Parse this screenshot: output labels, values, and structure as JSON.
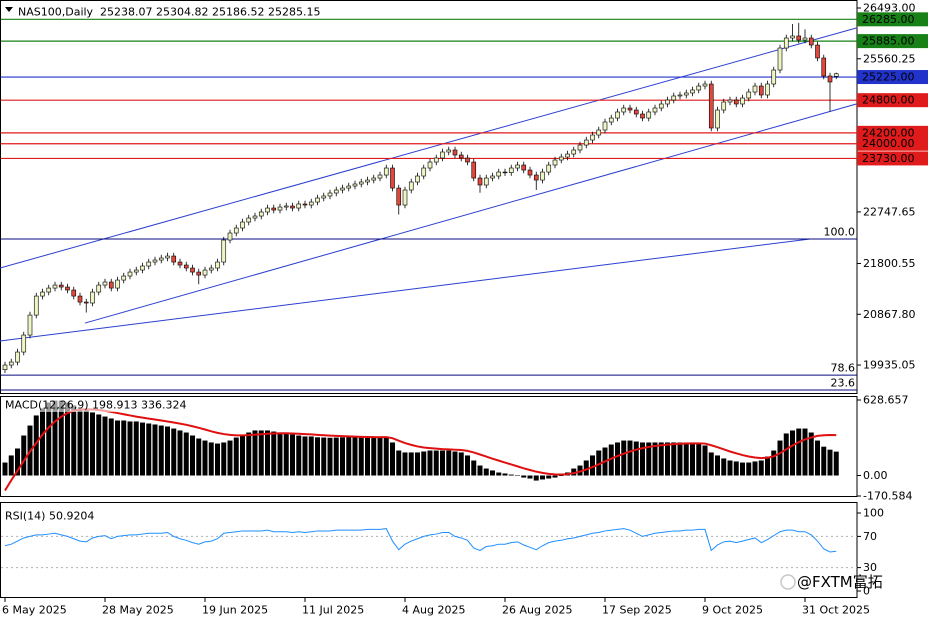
{
  "chart_data": [
    {
      "type": "candlestick",
      "title": "NAS100,Daily  25238.07 25304.82 25186.52 25285.15",
      "categories": [
        "6 May 2025",
        null,
        null,
        null,
        null,
        null,
        null,
        null,
        null,
        null,
        null,
        null,
        null,
        null,
        null,
        null,
        "28 May 2025",
        null,
        null,
        null,
        null,
        null,
        null,
        null,
        null,
        null,
        null,
        null,
        null,
        null,
        null,
        null,
        "19 Jun 2025",
        null,
        null,
        null,
        null,
        null,
        null,
        null,
        null,
        null,
        null,
        null,
        null,
        null,
        null,
        null,
        "11 Jul 2025",
        null,
        null,
        null,
        null,
        null,
        null,
        null,
        null,
        null,
        null,
        null,
        null,
        null,
        null,
        null,
        "4 Aug 2025",
        null,
        null,
        null,
        null,
        null,
        null,
        null,
        null,
        null,
        null,
        null,
        null,
        null,
        null,
        null,
        "26 Aug 2025",
        null,
        null,
        null,
        null,
        null,
        null,
        null,
        null,
        null,
        null,
        null,
        null,
        null,
        null,
        null,
        "17 Sep 2025",
        null,
        null,
        null,
        null,
        null,
        null,
        null,
        null,
        null,
        null,
        null,
        null,
        null,
        null,
        null,
        "9 Oct 2025",
        null,
        null,
        null,
        null,
        null,
        null,
        null,
        null,
        null,
        null,
        null,
        null,
        null,
        null,
        null,
        "31 Oct 2025",
        null,
        null,
        null,
        null,
        null
      ],
      "open": [
        19850,
        19935,
        19990,
        20174,
        20486,
        20853,
        21202,
        21276,
        21349,
        21404,
        21368,
        21313,
        21202,
        21092,
        21074,
        21276,
        21404,
        21460,
        21349,
        21496,
        21570,
        21643,
        21680,
        21754,
        21827,
        21864,
        21901,
        21937,
        21827,
        21772,
        21717,
        21643,
        21588,
        21680,
        21717,
        21827,
        22231,
        22360,
        22452,
        22562,
        22635,
        22672,
        22746,
        22819,
        22782,
        22837,
        22856,
        22819,
        22893,
        22874,
        22929,
        23003,
        23040,
        23095,
        23150,
        23186,
        23223,
        23260,
        23297,
        23333,
        23370,
        23425,
        23554,
        23186,
        22874,
        23150,
        23297,
        23407,
        23554,
        23664,
        23738,
        23848,
        23885,
        23793,
        23738,
        23664,
        23370,
        23242,
        23370,
        23407,
        23480,
        23470,
        23554,
        23609,
        23517,
        23425,
        23333,
        23480,
        23609,
        23701,
        23756,
        23811,
        23885,
        23976,
        24068,
        24160,
        24252,
        24399,
        24472,
        24583,
        24656,
        24619,
        24546,
        24472,
        24583,
        24656,
        24730,
        24803,
        24877,
        24895,
        24932,
        24987,
        25060,
        25097,
        24289,
        24619,
        24766,
        24803,
        24730,
        24840,
        24950,
        25060,
        24895,
        25097,
        25354,
        25758,
        25942,
        25979,
        25905,
        25942,
        25813,
        25575,
        25244,
        25238.07
      ],
      "high": [
        19995,
        20050,
        20234,
        20546,
        20913,
        21262,
        21336,
        21409,
        21464,
        21464,
        21428,
        21373,
        21262,
        21152,
        21336,
        21464,
        21520,
        21520,
        21556,
        21630,
        21703,
        21740,
        21814,
        21887,
        21924,
        21961,
        21997,
        21997,
        21887,
        21832,
        21777,
        21703,
        21740,
        21777,
        21887,
        22291,
        22420,
        22512,
        22622,
        22695,
        22732,
        22806,
        22879,
        22879,
        22897,
        22916,
        22916,
        22953,
        22953,
        22989,
        23063,
        23100,
        23155,
        23210,
        23246,
        23283,
        23320,
        23357,
        23393,
        23430,
        23485,
        23614,
        23614,
        23246,
        23210,
        23357,
        23467,
        23614,
        23724,
        23798,
        23908,
        23945,
        23945,
        23853,
        23798,
        23724,
        23430,
        23430,
        23467,
        23540,
        23540,
        23614,
        23669,
        23669,
        23577,
        23485,
        23540,
        23669,
        23761,
        23816,
        23871,
        23945,
        24036,
        24128,
        24220,
        24312,
        24459,
        24532,
        24643,
        24716,
        24716,
        24679,
        24606,
        24643,
        24716,
        24790,
        24863,
        24937,
        24955,
        24992,
        25047,
        25120,
        25157,
        25157,
        24679,
        24826,
        24863,
        24863,
        24900,
        25010,
        25120,
        25120,
        25157,
        25414,
        25818,
        26002,
        26200,
        26220,
        26100,
        26002,
        25873,
        25635,
        25304,
        25304.82
      ],
      "low": [
        19790,
        19875,
        19930,
        20114,
        20426,
        20793,
        21142,
        21216,
        21289,
        21308,
        21253,
        21142,
        21032,
        20900,
        21014,
        21216,
        21344,
        21289,
        21289,
        21436,
        21510,
        21583,
        21620,
        21694,
        21767,
        21804,
        21841,
        21767,
        21712,
        21657,
        21583,
        21420,
        21528,
        21620,
        21657,
        21767,
        22171,
        22300,
        22392,
        22502,
        22575,
        22612,
        22686,
        22722,
        22722,
        22777,
        22759,
        22759,
        22814,
        22814,
        22869,
        22943,
        22980,
        23035,
        23090,
        23126,
        23163,
        23200,
        23237,
        23273,
        23310,
        23365,
        23126,
        22700,
        22814,
        23090,
        23237,
        23347,
        23494,
        23604,
        23678,
        23788,
        23733,
        23678,
        23604,
        23310,
        23100,
        23182,
        23310,
        23347,
        23410,
        23410,
        23494,
        23457,
        23365,
        23150,
        23273,
        23420,
        23549,
        23641,
        23696,
        23751,
        23825,
        23916,
        24008,
        24100,
        24192,
        24339,
        24412,
        24523,
        24559,
        24486,
        24412,
        24412,
        24523,
        24596,
        24670,
        24743,
        24817,
        24835,
        24872,
        24927,
        25000,
        24229,
        24229,
        24559,
        24706,
        24670,
        24670,
        24780,
        24890,
        24835,
        24835,
        25037,
        25294,
        25698,
        25882,
        25845,
        25845,
        25753,
        25515,
        25184,
        24590,
        25186.52
      ],
      "close": [
        19935,
        19990,
        20174,
        20486,
        20853,
        21202,
        21276,
        21349,
        21404,
        21368,
        21313,
        21202,
        21092,
        21074,
        21276,
        21404,
        21460,
        21349,
        21496,
        21570,
        21643,
        21680,
        21754,
        21827,
        21864,
        21901,
        21937,
        21827,
        21772,
        21717,
        21643,
        21588,
        21680,
        21717,
        21827,
        22231,
        22360,
        22452,
        22562,
        22635,
        22672,
        22746,
        22819,
        22782,
        22837,
        22856,
        22819,
        22893,
        22874,
        22929,
        23003,
        23040,
        23095,
        23150,
        23186,
        23223,
        23260,
        23297,
        23333,
        23370,
        23425,
        23554,
        23186,
        22874,
        23150,
        23297,
        23407,
        23554,
        23664,
        23738,
        23848,
        23885,
        23793,
        23738,
        23664,
        23370,
        23242,
        23370,
        23407,
        23480,
        23470,
        23554,
        23609,
        23517,
        23425,
        23333,
        23480,
        23609,
        23701,
        23756,
        23811,
        23885,
        23976,
        24068,
        24160,
        24252,
        24399,
        24472,
        24583,
        24656,
        24619,
        24546,
        24472,
        24583,
        24656,
        24730,
        24803,
        24877,
        24895,
        24932,
        24987,
        25060,
        25097,
        24289,
        24619,
        24766,
        24803,
        24730,
        24840,
        24950,
        25060,
        24895,
        25097,
        25354,
        25758,
        25942,
        25979,
        25905,
        25942,
        25813,
        25575,
        25244,
        25134,
        25285.15
      ],
      "up_color": "#eef5c4",
      "down_color": "#e0483c",
      "ylim": [
        19440,
        26640
      ],
      "yticks": [
        {
          "value": 26493,
          "label": "26493.00"
        },
        {
          "value": 25560.25,
          "label": "25560.25"
        },
        {
          "value": 22747.65,
          "label": "22747.65"
        },
        {
          "value": 21800.55,
          "label": "21800.55"
        },
        {
          "value": 20867.8,
          "label": "20867.80"
        },
        {
          "value": 19935.05,
          "label": "19935.05"
        }
      ],
      "levels": [
        {
          "value": 26285,
          "label": "26285.00",
          "color": "#178017"
        },
        {
          "value": 25885,
          "label": "25885.00",
          "color": "#178017"
        },
        {
          "value": 25225,
          "label": "25225.00",
          "color": "#2233cc"
        },
        {
          "value": 24800,
          "label": "24800.00",
          "color": "#e01b1b"
        },
        {
          "value": 24200,
          "label": "24200.00",
          "color": "#e01b1b"
        },
        {
          "value": 24000,
          "label": "24000.00",
          "color": "#e01b1b"
        },
        {
          "value": 23730,
          "label": "23730.00",
          "color": "#e01b1b"
        }
      ],
      "fib_levels": [
        {
          "price": 22250,
          "text": "100.0"
        },
        {
          "price": 19751,
          "text": "78.6"
        },
        {
          "price": 19476,
          "text": "23.6"
        }
      ],
      "fib_color": "#0a0a80",
      "trendlines": [
        {
          "x": [
            -0.8,
            136.2
          ],
          "y": [
            21717,
            26126
          ]
        },
        {
          "x": [
            12.8,
            136.2
          ],
          "y": [
            20706,
            24730
          ]
        },
        {
          "x": [
            -0.8,
            128.8
          ],
          "y": [
            20376,
            22250
          ]
        }
      ],
      "trendline_color": "#2a3fd0",
      "watermark": "@FXTM富拓"
    },
    {
      "type": "macd",
      "title": "MACD(12,26,9) 198.913 336.324",
      "values": [
        108,
        167,
        225,
        333,
        416,
        500,
        558,
        608,
        624,
        624,
        608,
        583,
        558,
        541,
        525,
        508,
        491,
        475,
        458,
        458,
        450,
        450,
        441,
        433,
        425,
        416,
        408,
        391,
        375,
        358,
        333,
        308,
        291,
        275,
        266,
        275,
        291,
        316,
        341,
        358,
        375,
        375,
        375,
        366,
        358,
        350,
        341,
        333,
        325,
        325,
        318,
        316,
        314,
        316,
        318,
        320,
        318,
        316,
        314,
        316,
        316,
        325,
        275,
        208,
        192,
        192,
        192,
        200,
        208,
        208,
        208,
        208,
        200,
        192,
        167,
        125,
        83,
        58,
        42,
        25,
        17,
        8,
        0,
        -17,
        -25,
        -42,
        -33,
        -25,
        -17,
        0,
        25,
        58,
        83,
        125,
        167,
        208,
        233,
        258,
        275,
        291,
        291,
        283,
        275,
        275,
        275,
        275,
        275,
        275,
        275,
        275,
        275,
        266,
        250,
        192,
        167,
        142,
        125,
        117,
        108,
        108,
        117,
        125,
        158,
        208,
        291,
        350,
        375,
        391,
        391,
        358,
        291,
        240,
        215,
        198.913
      ],
      "signal": [
        -125,
        -40,
        40,
        120,
        200,
        270,
        340,
        400,
        450,
        490,
        520,
        540,
        550,
        552,
        550,
        545,
        538,
        530,
        520,
        510,
        500,
        490,
        482,
        474,
        466,
        458,
        450,
        441,
        432,
        422,
        410,
        397,
        383,
        368,
        355,
        345,
        338,
        334,
        334,
        336,
        340,
        344,
        348,
        350,
        352,
        352,
        350,
        348,
        345,
        342,
        338,
        335,
        332,
        330,
        328,
        326,
        324,
        322,
        321,
        320,
        319,
        320,
        311,
        290,
        270,
        255,
        242,
        233,
        228,
        224,
        220,
        218,
        215,
        212,
        205,
        192,
        175,
        158,
        140,
        124,
        108,
        92,
        76,
        60,
        46,
        32,
        22,
        14,
        9,
        8,
        11,
        20,
        33,
        50,
        70,
        93,
        117,
        140,
        162,
        182,
        200,
        215,
        228,
        238,
        246,
        252,
        257,
        261,
        264,
        266,
        268,
        268,
        266,
        252,
        236,
        218,
        200,
        185,
        170,
        158,
        150,
        145,
        148,
        160,
        185,
        218,
        250,
        278,
        300,
        316,
        330,
        335,
        337,
        336.324
      ],
      "color": "#000000",
      "signal_color": "#e01010",
      "ylim": [
        -170.584,
        628.657
      ],
      "yticks": [
        628.657,
        {
          "value": 0,
          "label": "0.00"
        },
        -170.584
      ]
    },
    {
      "type": "rsi",
      "title": "RSI(14) 50.9204",
      "values": [
        58,
        60,
        64,
        68,
        70,
        72,
        72,
        73,
        74,
        72,
        70,
        67,
        64,
        63,
        68,
        70,
        71,
        67,
        70,
        71,
        72,
        72,
        73,
        74,
        74,
        74,
        75,
        70,
        67,
        65,
        62,
        60,
        63,
        64,
        67,
        74,
        75,
        76,
        77,
        77,
        77,
        77,
        78,
        76,
        76,
        76,
        75,
        76,
        75,
        76,
        77,
        77,
        77,
        78,
        78,
        78,
        78,
        78,
        79,
        79,
        79,
        80,
        64,
        53,
        60,
        64,
        67,
        70,
        72,
        73,
        75,
        75,
        70,
        68,
        65,
        55,
        52,
        57,
        58,
        60,
        60,
        62,
        63,
        59,
        56,
        53,
        58,
        62,
        64,
        65,
        67,
        68,
        70,
        72,
        74,
        75,
        77,
        78,
        79,
        80,
        78,
        74,
        70,
        72,
        74,
        75,
        76,
        77,
        77,
        78,
        78,
        79,
        79,
        52,
        59,
        63,
        64,
        62,
        64,
        66,
        68,
        62,
        66,
        71,
        76,
        78,
        78,
        76,
        76,
        72,
        64,
        54,
        50,
        50.9204
      ],
      "color": "#1e8fff",
      "ylim": [
        0,
        100
      ],
      "yticks": [
        100,
        70,
        30,
        0
      ],
      "grid": true
    }
  ]
}
